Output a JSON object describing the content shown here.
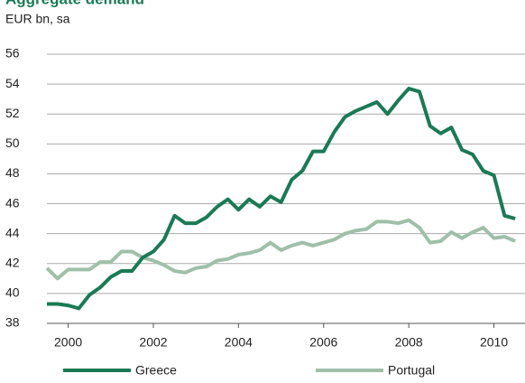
{
  "chart_data": {
    "type": "line",
    "title": "Aggregate demand",
    "subtitle": "EUR bn, sa",
    "x": [
      1999.5,
      1999.75,
      2000,
      2000.25,
      2000.5,
      2000.75,
      2001,
      2001.25,
      2001.5,
      2001.75,
      2002,
      2002.25,
      2002.5,
      2002.75,
      2003,
      2003.25,
      2003.5,
      2003.75,
      2004,
      2004.25,
      2004.5,
      2004.75,
      2005,
      2005.25,
      2005.5,
      2005.75,
      2006,
      2006.25,
      2006.5,
      2006.75,
      2007,
      2007.25,
      2007.5,
      2007.75,
      2008,
      2008.25,
      2008.5,
      2008.75,
      2009,
      2009.25,
      2009.5,
      2009.75,
      2010,
      2010.25,
      2010.5
    ],
    "series": [
      {
        "name": "Greece",
        "color": "#1a7a55",
        "values": [
          39.3,
          39.3,
          39.2,
          39.0,
          39.9,
          40.4,
          41.1,
          41.5,
          41.5,
          42.4,
          42.8,
          43.6,
          45.2,
          44.7,
          44.7,
          45.1,
          45.8,
          46.3,
          45.6,
          46.3,
          45.8,
          46.5,
          46.1,
          47.6,
          48.2,
          49.5,
          49.5,
          50.8,
          51.8,
          52.2,
          52.5,
          52.8,
          52.0,
          52.9,
          53.7,
          53.5,
          51.2,
          50.7,
          51.1,
          49.6,
          49.3,
          48.2,
          47.9,
          45.2,
          45.0
        ]
      },
      {
        "name": "Portugal",
        "color": "#9fbfa9",
        "values": [
          41.7,
          41.0,
          41.6,
          41.6,
          41.6,
          42.1,
          42.1,
          42.8,
          42.8,
          42.4,
          42.2,
          41.9,
          41.5,
          41.4,
          41.7,
          41.8,
          42.2,
          42.3,
          42.6,
          42.7,
          42.9,
          43.4,
          42.9,
          43.2,
          43.4,
          43.2,
          43.4,
          43.6,
          44.0,
          44.2,
          44.3,
          44.8,
          44.8,
          44.7,
          44.9,
          44.4,
          43.4,
          43.5,
          44.1,
          43.7,
          44.1,
          44.4,
          43.7,
          43.8,
          43.5
        ]
      }
    ],
    "xlim": [
      1999.5,
      2010.73
    ],
    "xticks": [
      2000,
      2002,
      2004,
      2006,
      2008,
      2010
    ],
    "ylim": [
      38,
      56
    ],
    "yticks": [
      38,
      40,
      42,
      44,
      46,
      48,
      50,
      52,
      54,
      56
    ],
    "grid": true,
    "legend": "bottom"
  }
}
